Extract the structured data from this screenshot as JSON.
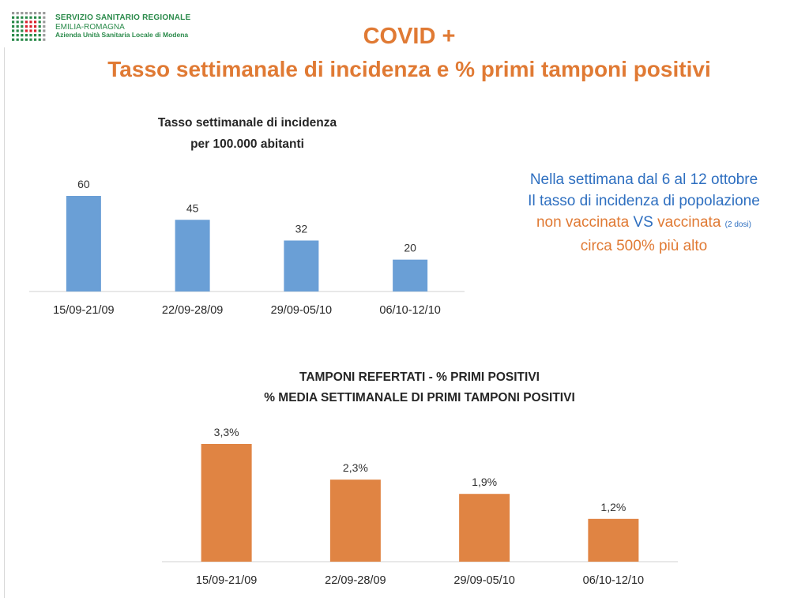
{
  "header": {
    "logo": {
      "line1": "SERVIZIO SANITARIO REGIONALE",
      "line2": "EMILIA-ROMAGNA",
      "line3": "Azienda Unità Sanitaria Locale di Modena",
      "colors": {
        "green": "#2a8a4a",
        "red": "#d9232d",
        "grey": "#9a9a9a"
      }
    },
    "title_line1": "COVID +",
    "title_line2": "Tasso settimanale di incidenza e % primi tamponi positivi"
  },
  "note": {
    "line1": "Nella settimana dal 6 al 12 ottobre",
    "line2": "Il tasso di incidenza di popolazione",
    "line3_part1": "non vaccinata ",
    "line3_vs": "VS",
    "line3_part2": " vaccinata ",
    "line3_small": "(2 dosi)",
    "line4": "circa 500% più alto"
  },
  "chart_data": [
    {
      "type": "bar",
      "title": "Tasso settimanale di incidenza",
      "subtitle": "per 100.000 abitanti",
      "categories": [
        "15/09-21/09",
        "22/09-28/09",
        "29/09-05/10",
        "06/10-12/10"
      ],
      "values": [
        60,
        45,
        32,
        20
      ],
      "data_labels": [
        "60",
        "45",
        "32",
        "20"
      ],
      "ylim": [
        0,
        60
      ],
      "grid": false,
      "legend": "none",
      "color": "#6a9fd6"
    },
    {
      "type": "bar",
      "title": "TAMPONI REFERTATI - % PRIMI POSITIVI",
      "subtitle": "% MEDIA SETTIMANALE DI PRIMI TAMPONI POSITIVI",
      "categories": [
        "15/09-21/09",
        "22/09-28/09",
        "29/09-05/10",
        "06/10-12/10"
      ],
      "values": [
        3.3,
        2.3,
        1.9,
        1.2
      ],
      "data_labels": [
        "3,3%",
        "2,3%",
        "1,9%",
        "1,2%"
      ],
      "ylim": [
        0,
        3.3
      ],
      "grid": false,
      "legend": "none",
      "color": "#e08443"
    }
  ]
}
